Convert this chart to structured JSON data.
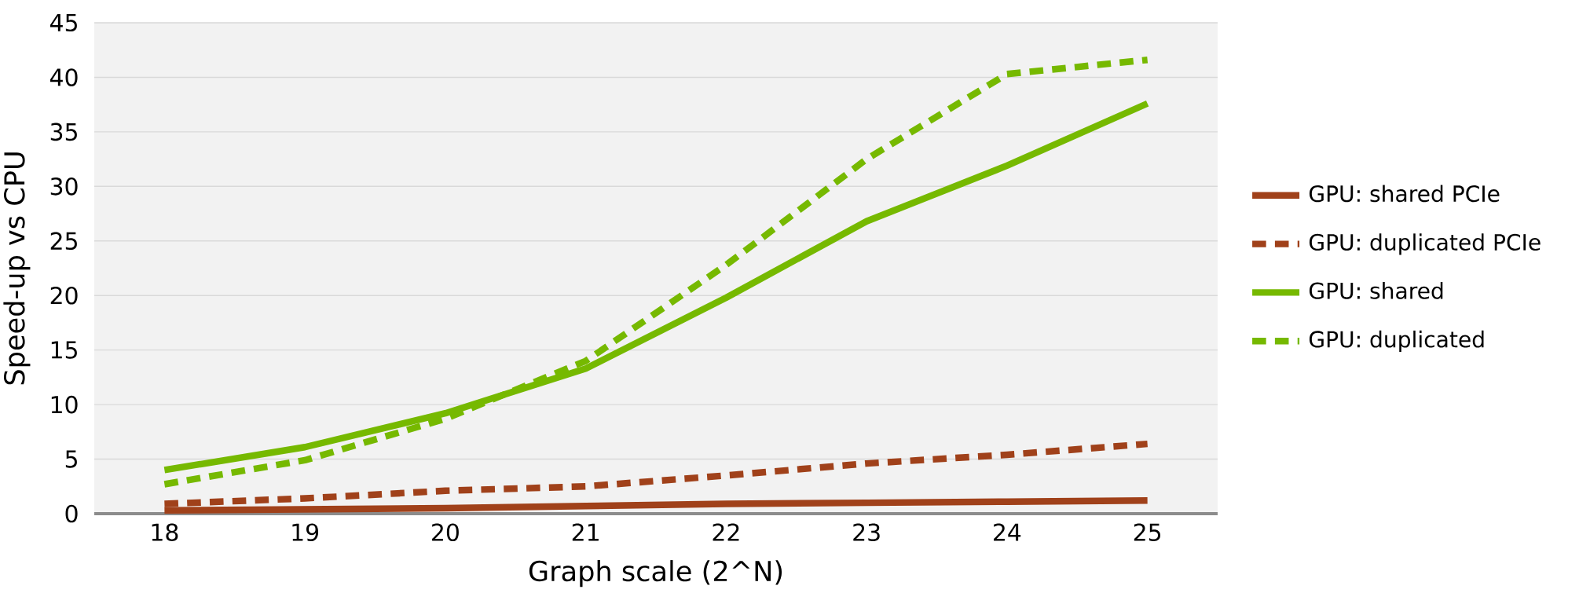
{
  "chart_data": {
    "type": "line",
    "xlabel": "Graph scale (2^N)",
    "ylabel": "Speed-up vs CPU",
    "categories": [
      "18",
      "19",
      "20",
      "21",
      "22",
      "23",
      "24",
      "25"
    ],
    "series": [
      {
        "name": "GPU: shared PCIe",
        "color": "#a0411a",
        "line_style": "solid",
        "values": [
          0.3,
          0.4,
          0.5,
          0.7,
          0.9,
          1.0,
          1.1,
          1.2
        ]
      },
      {
        "name": "GPU: duplicated PCIe",
        "color": "#a0411a",
        "line_style": "dashed",
        "values": [
          0.9,
          1.4,
          2.1,
          2.5,
          3.5,
          4.6,
          5.4,
          6.4
        ]
      },
      {
        "name": "GPU: shared",
        "color": "#76b900",
        "line_style": "solid",
        "values": [
          4.0,
          6.1,
          9.2,
          13.3,
          19.8,
          26.8,
          31.9,
          37.6
        ]
      },
      {
        "name": "GPU: duplicated",
        "color": "#76b900",
        "line_style": "dashed",
        "values": [
          2.7,
          4.9,
          8.7,
          14.0,
          22.8,
          32.5,
          40.3,
          41.6
        ]
      }
    ],
    "ylim": [
      0,
      45
    ],
    "yticks": [
      0,
      5,
      10,
      15,
      20,
      25,
      30,
      35,
      40,
      45
    ],
    "grid": "y",
    "legend": "right",
    "marker": "none"
  }
}
